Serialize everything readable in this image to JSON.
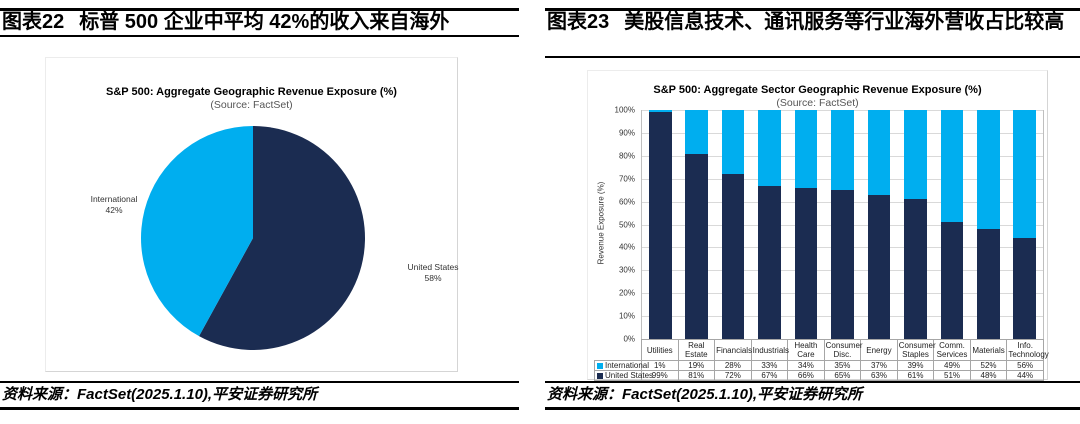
{
  "colors": {
    "international": "#00AEEF",
    "united_states": "#1B2C51",
    "grid": "#D9D9D9",
    "table_border": "#A6A6A6",
    "rule": "#000000"
  },
  "panels": {
    "left": {
      "figure_label": "图表22",
      "figure_title": "标普 500 企业中平均 42%的收入来自海外",
      "source": "资料来源：FactSet(2025.1.10),平安证券研究所"
    },
    "right": {
      "figure_label": "图表23",
      "figure_title": "美股信息技术、通讯服务等行业海外营收占比较高",
      "source": "资料来源：FactSet(2025.1.10),平安证券研究所"
    }
  },
  "chart_data": [
    {
      "type": "pie",
      "title": "S&P 500: Aggregate Geographic Revenue Exposure (%)",
      "subtitle": "(Source: FactSet)",
      "start_angle": "top, clockwise",
      "slices": [
        {
          "label": "United States",
          "value": 58,
          "pct_label": "58%",
          "color": "#1B2C51"
        },
        {
          "label": "International",
          "value": 42,
          "pct_label": "42%",
          "color": "#00AEEF"
        }
      ]
    },
    {
      "type": "bar",
      "stacked": true,
      "title": "S&P 500: Aggregate Sector Geographic Revenue Exposure (%)",
      "subtitle": "(Source: FactSet)",
      "ylabel": "Revenue Exposure (%)",
      "ylim": [
        0,
        100
      ],
      "y_ticks": [
        "100%",
        "90%",
        "80%",
        "70%",
        "60%",
        "50%",
        "40%",
        "30%",
        "20%",
        "10%",
        "0%"
      ],
      "grid": true,
      "legend_position": "table-left",
      "stack_bottom": "United States",
      "categories": [
        "Utilities",
        "Real Estate",
        "Financials",
        "Industrials",
        "Health Care",
        "Consumer\nDisc.",
        "Energy",
        "Consumer\nStaples",
        "Comm.\nServices",
        "Materials",
        "Info.\nTechnology"
      ],
      "series": [
        {
          "name": "International",
          "color": "#00AEEF",
          "values": [
            1,
            19,
            28,
            33,
            34,
            35,
            37,
            39,
            49,
            52,
            56
          ]
        },
        {
          "name": "United States",
          "color": "#1B2C51",
          "values": [
            99,
            81,
            72,
            67,
            66,
            65,
            63,
            61,
            51,
            48,
            44
          ]
        }
      ]
    }
  ]
}
